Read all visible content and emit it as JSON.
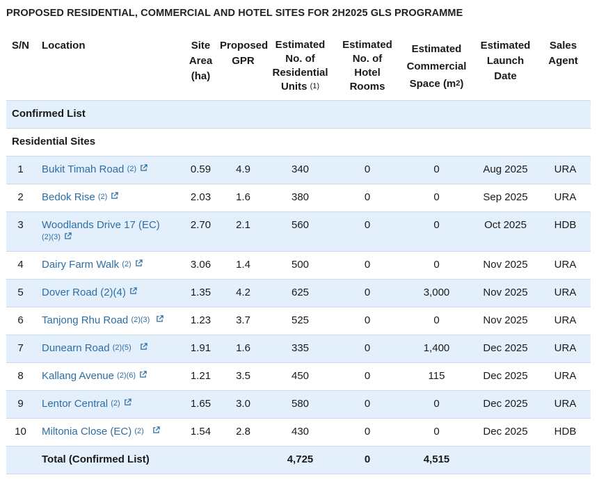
{
  "title": "PROPOSED RESIDENTIAL, COMMERCIAL AND HOTEL SITES FOR 2H2025 GLS PROGRAMME",
  "headers": {
    "sn": "S/N",
    "location": "Location",
    "area_l1": "Site",
    "area_l2": "Area",
    "area_l3": "(ha)",
    "gpr_l1": "Proposed",
    "gpr_l2": "GPR",
    "res_l1": "Estimated",
    "res_l2": "No. of",
    "res_l3": "Residential",
    "res_l4": "Units",
    "res_sup": "(1)",
    "hotel_l1": "Estimated",
    "hotel_l2": "No. of",
    "hotel_l3": "Hotel",
    "hotel_l4": "Rooms",
    "com_l1": "Estimated",
    "com_l2": "Commercial",
    "com_l3": "Space (m",
    "com_sup": "2",
    "com_l3b": ")",
    "launch_l1": "Estimated",
    "launch_l2": "Launch",
    "launch_l3": "Date",
    "agent_l1": "Sales",
    "agent_l2": "Agent"
  },
  "confirmed_list_label": "Confirmed List",
  "residential_sites_label": "Residential Sites",
  "rows": [
    {
      "sn": "1",
      "location": "Bukit Timah Road",
      "notes": "(2)",
      "area": "0.59",
      "gpr": "4.9",
      "res_units": "340",
      "hotel_rooms": "0",
      "commercial": "0",
      "launch": "Aug 2025",
      "agent": "URA"
    },
    {
      "sn": "2",
      "location": "Bedok Rise",
      "notes": "(2)",
      "area": "2.03",
      "gpr": "1.6",
      "res_units": "380",
      "hotel_rooms": "0",
      "commercial": "0",
      "launch": "Sep 2025",
      "agent": "URA"
    },
    {
      "sn": "3",
      "location": "Woodlands Drive 17 (EC)",
      "notes": "(2)(3)",
      "area": "2.70",
      "gpr": "2.1",
      "res_units": "560",
      "hotel_rooms": "0",
      "commercial": "0",
      "launch": "Oct 2025",
      "agent": "HDB"
    },
    {
      "sn": "4",
      "location": "Dairy Farm Walk",
      "notes": "(2)",
      "area": "3.06",
      "gpr": "1.4",
      "res_units": "500",
      "hotel_rooms": "0",
      "commercial": "0",
      "launch": "Nov 2025",
      "agent": "URA"
    },
    {
      "sn": "5",
      "location": "Dover Road (2)(4)",
      "notes": "",
      "area": "1.35",
      "gpr": "4.2",
      "res_units": "625",
      "hotel_rooms": "0",
      "commercial": "3,000",
      "launch": "Nov 2025",
      "agent": "URA"
    },
    {
      "sn": "6",
      "location": "Tanjong Rhu Road",
      "notes": "(2)(3)",
      "area": "1.23",
      "gpr": "3.7",
      "res_units": "525",
      "hotel_rooms": "0",
      "commercial": "0",
      "launch": "Nov 2025",
      "agent": "URA"
    },
    {
      "sn": "7",
      "location": "Dunearn Road",
      "notes": "(2)(5)",
      "area": "1.91",
      "gpr": "1.6",
      "res_units": "335",
      "hotel_rooms": "0",
      "commercial": "1,400",
      "launch": "Dec 2025",
      "agent": "URA"
    },
    {
      "sn": "8",
      "location": "Kallang Avenue",
      "notes": "(2)(6)",
      "area": "1.21",
      "gpr": "3.5",
      "res_units": "450",
      "hotel_rooms": "0",
      "commercial": "115",
      "launch": "Dec 2025",
      "agent": "URA"
    },
    {
      "sn": "9",
      "location": "Lentor Central",
      "notes": "(2)",
      "area": "1.65",
      "gpr": "3.0",
      "res_units": "580",
      "hotel_rooms": "0",
      "commercial": "0",
      "launch": "Dec 2025",
      "agent": "URA"
    },
    {
      "sn": "10",
      "location": "Miltonia Close (EC)",
      "notes": "(2)",
      "area": "1.54",
      "gpr": "2.8",
      "res_units": "430",
      "hotel_rooms": "0",
      "commercial": "0",
      "launch": "Dec 2025",
      "agent": "HDB"
    }
  ],
  "total": {
    "label": "Total (Confirmed List)",
    "res_units": "4,725",
    "hotel_rooms": "0",
    "commercial": "4,515"
  },
  "colors": {
    "link": "#2d6ea3",
    "row_highlight": "#e3f0fc",
    "border": "#c8d9ea"
  },
  "icons": {
    "external_link": "external-link-icon"
  }
}
